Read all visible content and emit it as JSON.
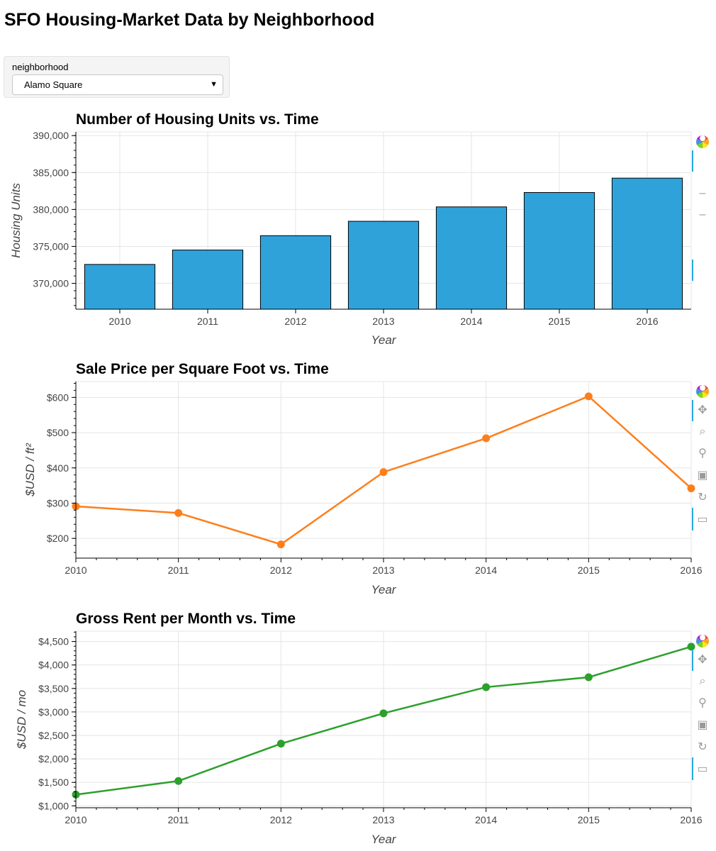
{
  "page": {
    "title": "SFO Housing-Market Data by Neighborhood"
  },
  "widget": {
    "label": "neighborhood",
    "selected": "Alamo Square"
  },
  "toolbar": {
    "icons": [
      "bokeh-logo-icon",
      "pan-icon",
      "box-zoom-icon",
      "wheel-zoom-icon",
      "save-icon",
      "reset-icon",
      "hover-icon"
    ]
  },
  "chart_data": [
    {
      "type": "bar",
      "title": "Number of Housing Units vs. Time",
      "xlabel": "Year",
      "ylabel": "Housing Units",
      "categories": [
        "2010",
        "2011",
        "2012",
        "2013",
        "2014",
        "2015",
        "2016"
      ],
      "values": [
        372560,
        374507,
        376454,
        378401,
        380348,
        382295,
        384242
      ],
      "ylim": [
        366500,
        390500
      ],
      "yticks": [
        370000,
        375000,
        380000,
        385000,
        390000
      ],
      "ytick_labels": [
        "370,000",
        "375,000",
        "380,000",
        "385,000",
        "390,000"
      ],
      "color": "#30a2da",
      "grid": true
    },
    {
      "type": "line",
      "title": "Sale Price per Square Foot vs. Time",
      "xlabel": "Year",
      "ylabel": "$USD / ft²",
      "x": [
        2010,
        2011,
        2012,
        2013,
        2014,
        2015,
        2016
      ],
      "values": [
        291,
        272,
        183,
        388,
        484,
        603,
        342
      ],
      "xlim": [
        2010,
        2016
      ],
      "ylim": [
        144,
        645
      ],
      "yticks": [
        200,
        300,
        400,
        500,
        600
      ],
      "ytick_labels": [
        "$200",
        "$300",
        "$400",
        "$500",
        "$600"
      ],
      "xtick_labels": [
        "2010",
        "2011",
        "2012",
        "2013",
        "2014",
        "2015",
        "2016"
      ],
      "color": "#fc7f1c",
      "grid": true
    },
    {
      "type": "line",
      "title": "Gross Rent per Month vs. Time",
      "xlabel": "Year",
      "ylabel": "$USD / mo",
      "x": [
        2010,
        2011,
        2012,
        2013,
        2014,
        2015,
        2016
      ],
      "values": [
        1239,
        1530,
        2324,
        2971,
        3528,
        3739,
        4390
      ],
      "xlim": [
        2010,
        2016
      ],
      "ylim": [
        960,
        4720
      ],
      "yticks": [
        1000,
        1500,
        2000,
        2500,
        3000,
        3500,
        4000,
        4500
      ],
      "ytick_labels": [
        "$1,000",
        "$1,500",
        "$2,000",
        "$2,500",
        "$3,000",
        "$3,500",
        "$4,000",
        "$4,500"
      ],
      "xtick_labels": [
        "2010",
        "2011",
        "2012",
        "2013",
        "2014",
        "2015",
        "2016"
      ],
      "color": "#2ca02c",
      "grid": true
    }
  ]
}
